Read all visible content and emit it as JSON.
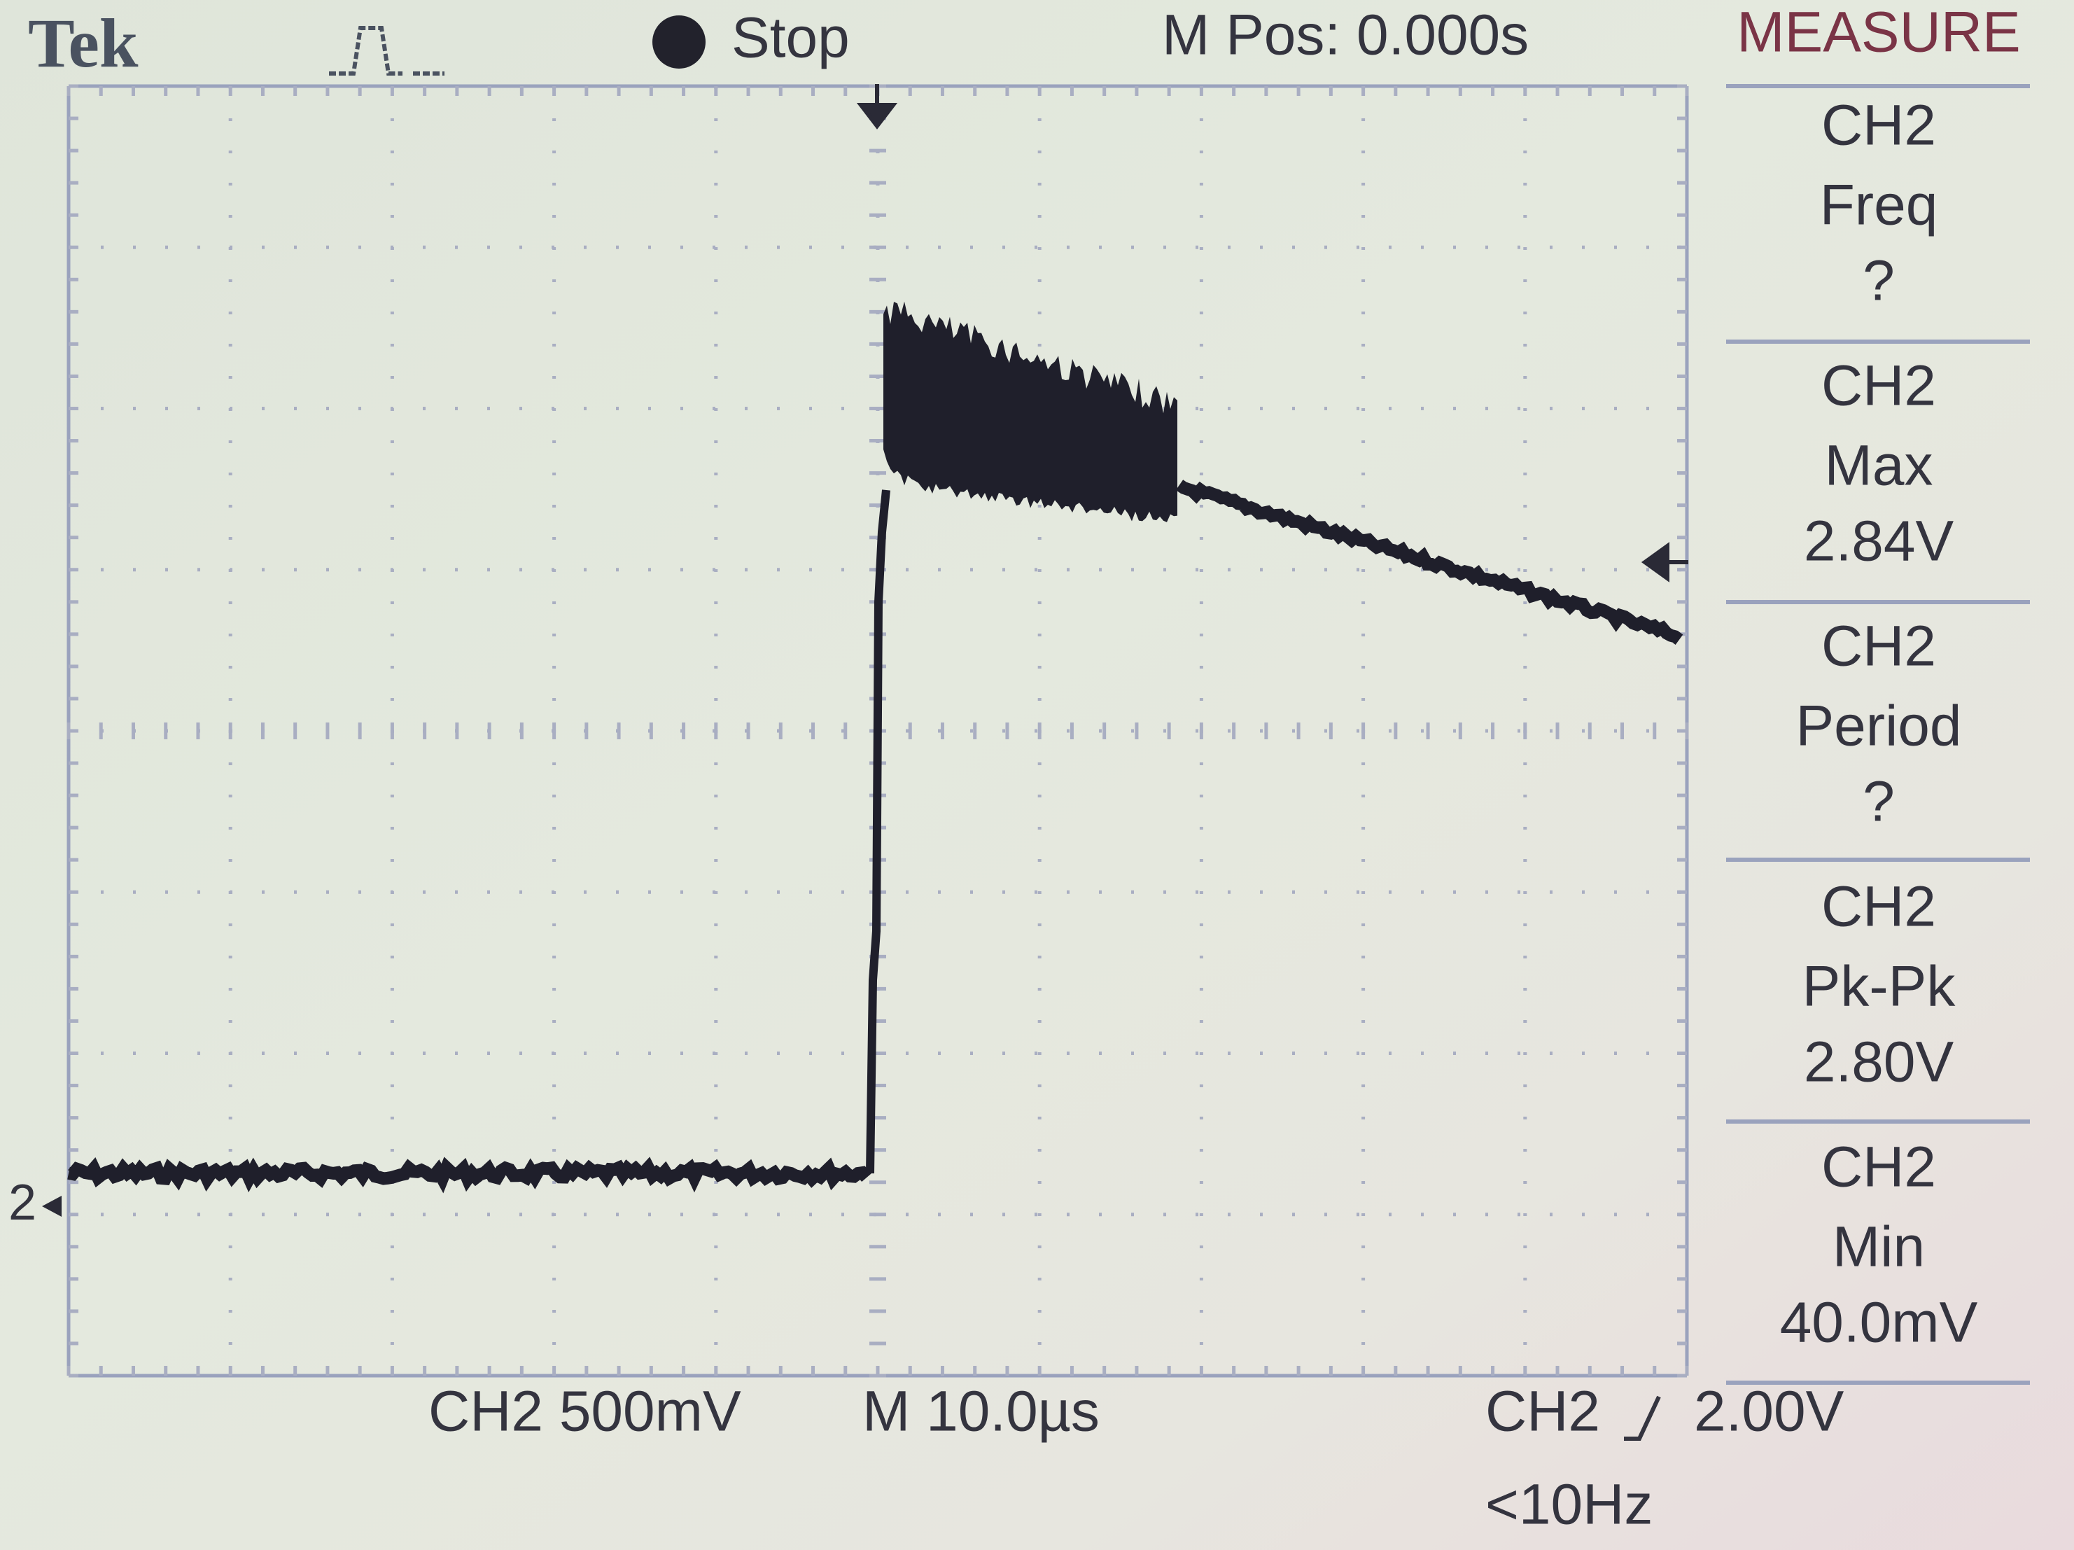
{
  "header": {
    "brand": "Tek",
    "state": "Stop",
    "position": "M Pos: 0.000s",
    "menu": "MEASURE"
  },
  "measurements": [
    {
      "channel": "CH2",
      "label": "Freq",
      "value": "?"
    },
    {
      "channel": "CH2",
      "label": "Max",
      "value": "2.84V"
    },
    {
      "channel": "CH2",
      "label": "Period",
      "value": "?"
    },
    {
      "channel": "CH2",
      "label": "Pk-Pk",
      "value": "2.80V"
    },
    {
      "channel": "CH2",
      "label": "Min",
      "value": "40.0mV"
    }
  ],
  "channel_marker": "2",
  "footer": {
    "channel_scale": "CH2 500mV",
    "time_scale": "M 10.0µs",
    "trigger_source": "CH2",
    "trigger_level": "2.00V",
    "trigger_frequency": "<10Hz"
  }
}
